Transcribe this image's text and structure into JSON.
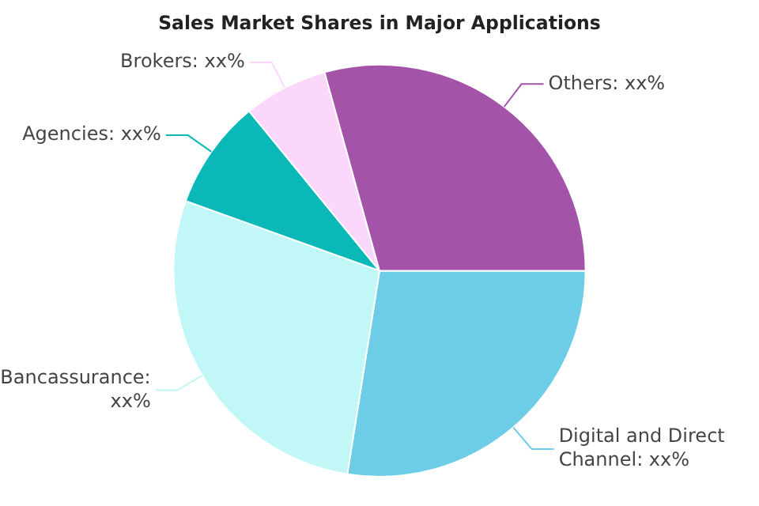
{
  "chart_data": {
    "type": "pie",
    "title": "Sales Market Shares in Major Applications",
    "categories": [
      "Digital and Direct Channel: xx%",
      "Bancassurance: xx%",
      "Agencies: xx%",
      "Brokers: xx%",
      "Others: xx%"
    ],
    "values": [
      27.5,
      28,
      8.6,
      6.6,
      29.3
    ],
    "colors": [
      "#6dcde6",
      "#c2f7f7",
      "#0ab8b8",
      "#fcd7fc",
      "#a354a8"
    ],
    "legend": false
  }
}
